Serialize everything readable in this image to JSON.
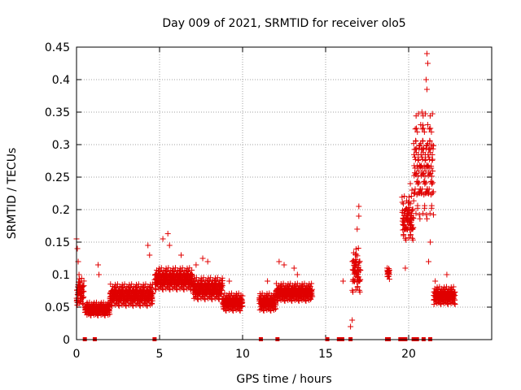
{
  "chart_data": {
    "type": "scatter",
    "title": "Day 009 of 2021, SRMTID for receiver olo5",
    "xlabel": "GPS time / hours",
    "ylabel": "SRMTID / TECUs",
    "xlim": [
      0,
      25
    ],
    "ylim": [
      0,
      0.45
    ],
    "xticks": [
      0,
      5,
      10,
      15,
      20
    ],
    "yticks": [
      0,
      0.05,
      0.1,
      0.15,
      0.2,
      0.25,
      0.3,
      0.35,
      0.4,
      0.45
    ],
    "grid": true,
    "marker": "+",
    "color": "#e00000",
    "segments": [
      {
        "start": 0.0,
        "end": 0.45,
        "base": 0.07,
        "spread": 0.03,
        "spikes": [
          [
            0.0,
            0.155
          ],
          [
            0.05,
            0.14
          ],
          [
            0.1,
            0.12
          ],
          [
            0.15,
            0.1
          ]
        ]
      },
      {
        "start": 0.5,
        "end": 2.0,
        "base": 0.045,
        "spread": 0.015,
        "spikes": [
          [
            1.3,
            0.115
          ],
          [
            1.35,
            0.1
          ]
        ]
      },
      {
        "start": 2.0,
        "end": 4.6,
        "base": 0.065,
        "spread": 0.025,
        "spikes": [
          [
            4.3,
            0.145
          ],
          [
            4.4,
            0.13
          ]
        ]
      },
      {
        "start": 4.7,
        "end": 7.0,
        "base": 0.09,
        "spread": 0.025,
        "spikes": [
          [
            5.2,
            0.155
          ],
          [
            5.5,
            0.163
          ],
          [
            5.6,
            0.145
          ],
          [
            6.3,
            0.13
          ]
        ]
      },
      {
        "start": 7.0,
        "end": 8.8,
        "base": 0.075,
        "spread": 0.025,
        "spikes": [
          [
            7.6,
            0.125
          ],
          [
            7.9,
            0.12
          ],
          [
            7.2,
            0.115
          ]
        ]
      },
      {
        "start": 8.8,
        "end": 10.0,
        "base": 0.055,
        "spread": 0.02,
        "spikes": [
          [
            9.2,
            0.09
          ]
        ]
      },
      {
        "start": 11.0,
        "end": 12.0,
        "base": 0.055,
        "spread": 0.02,
        "spikes": [
          [
            11.5,
            0.09
          ]
        ]
      },
      {
        "start": 12.0,
        "end": 14.2,
        "base": 0.07,
        "spread": 0.02,
        "spikes": [
          [
            12.2,
            0.12
          ],
          [
            12.5,
            0.115
          ],
          [
            13.1,
            0.11
          ],
          [
            13.3,
            0.1
          ]
        ]
      },
      {
        "start": 16.6,
        "end": 17.1,
        "base": 0.1,
        "spread": 0.05,
        "spikes": [
          [
            17.0,
            0.205
          ],
          [
            17.0,
            0.19
          ],
          [
            16.9,
            0.17
          ],
          [
            16.5,
            0.02
          ],
          [
            16.6,
            0.03
          ],
          [
            16.05,
            0.09
          ]
        ]
      },
      {
        "start": 18.7,
        "end": 18.85,
        "base": 0.1,
        "spread": 0.015,
        "spikes": []
      },
      {
        "start": 19.6,
        "end": 20.3,
        "base": 0.18,
        "spread": 0.05,
        "spikes": [
          [
            20.1,
            0.24
          ],
          [
            20.2,
            0.23
          ],
          [
            19.8,
            0.11
          ]
        ]
      },
      {
        "start": 20.3,
        "end": 21.5,
        "base": 0.25,
        "spread": 0.12,
        "spikes": [
          [
            21.1,
            0.44
          ],
          [
            21.15,
            0.425
          ],
          [
            21.05,
            0.4
          ],
          [
            21.1,
            0.385
          ],
          [
            20.8,
            0.35
          ],
          [
            20.85,
            0.33
          ],
          [
            21.4,
            0.3
          ],
          [
            21.3,
            0.15
          ],
          [
            21.2,
            0.12
          ]
        ]
      },
      {
        "start": 21.5,
        "end": 22.8,
        "base": 0.065,
        "spread": 0.02,
        "spikes": [
          [
            21.6,
            0.09
          ],
          [
            22.3,
            0.1
          ]
        ]
      }
    ],
    "data_gaps_at_hours": [
      0.5,
      1.1,
      4.7,
      11.1,
      12.1,
      15.1,
      15.8,
      16.0,
      16.5,
      18.7,
      18.8,
      19.5,
      19.6,
      19.7,
      19.8,
      20.3,
      20.5,
      20.9,
      21.3
    ]
  }
}
